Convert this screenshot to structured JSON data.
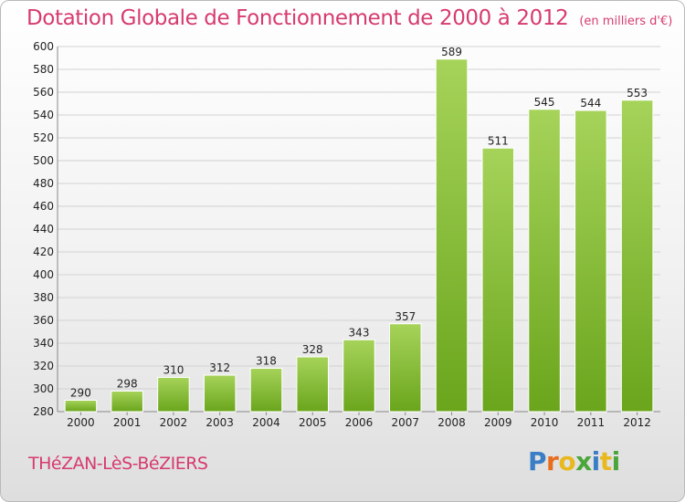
{
  "header": {
    "title": "Dotation Globale de Fonctionnement de 2000 à 2012",
    "unit": "(en milliers d'€)"
  },
  "footer": {
    "commune": "THéZAN-LèS-BéZIERS",
    "brand": "Proxiti"
  },
  "colors": {
    "accent": "#d63b6e",
    "bar_top": "#a6d35a",
    "bar_bottom": "#6aa51c",
    "brand_letters": [
      "#3a7ec5",
      "#e86d1f",
      "#e8b81f",
      "#4aa63a",
      "#3a7ec5",
      "#e8b81f",
      "#4aa63a"
    ]
  },
  "chart_data": {
    "type": "bar",
    "categories": [
      "2000",
      "2001",
      "2002",
      "2003",
      "2004",
      "2005",
      "2006",
      "2007",
      "2008",
      "2009",
      "2010",
      "2011",
      "2012"
    ],
    "values": [
      290,
      298,
      310,
      312,
      318,
      328,
      343,
      357,
      589,
      511,
      545,
      544,
      553
    ],
    "title": "Dotation Globale de Fonctionnement de 2000 à 2012",
    "xlabel": "",
    "ylabel": "",
    "ylim": [
      280,
      600
    ],
    "yticks": [
      280,
      300,
      320,
      340,
      360,
      380,
      400,
      420,
      440,
      460,
      480,
      500,
      520,
      540,
      560,
      580,
      600
    ],
    "grid": true,
    "legend": "none"
  }
}
